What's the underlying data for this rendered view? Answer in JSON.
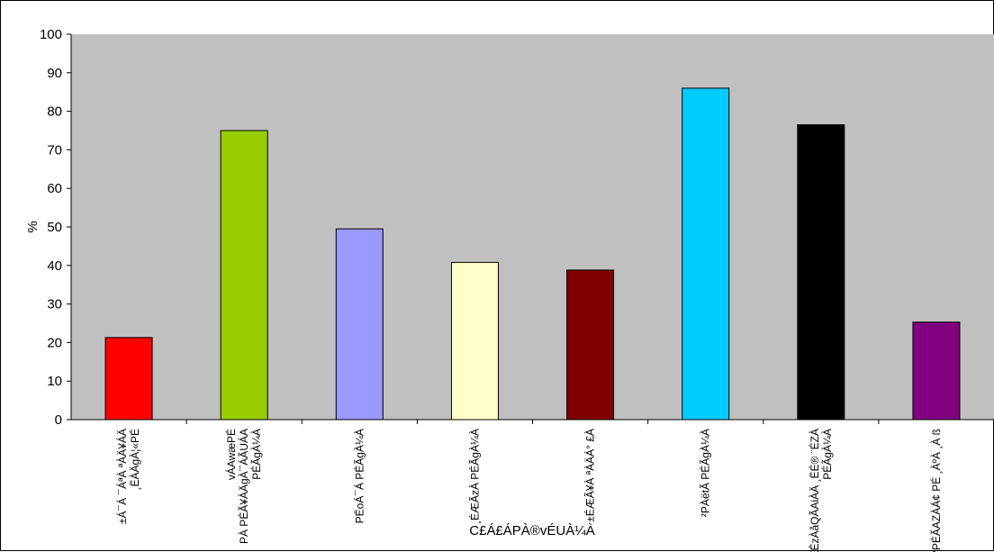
{
  "chart_data": {
    "type": "bar",
    "title": "",
    "ylabel": "%",
    "xlabel": "C£Á£ÁPÀ®vÉUÀ¼À",
    "ylim": [
      0,
      100
    ],
    "yticks": [
      0,
      10,
      20,
      30,
      40,
      50,
      60,
      70,
      80,
      90,
      100
    ],
    "grid": false,
    "legend": "none",
    "background": "#c0c0c0",
    "categories": [
      [
        "±Á¯Á ¯ÁªÀ ªÀÄ¥ÁÄ",
        "¸ËÀÄgÀ¦«PÉ"
      ],
      [
        "vÁAwæPÉ",
        "PÀ PÉÃ¥ÀÄgÀ¯ÁÃUÁA",
        "PÉÃgÀ¼À"
      ],
      [
        "PÉoÁ¯Á PÉÃgÀ¼À"
      ],
      [
        "¸ÉÆÃzÀ PÉÃgÀ¼À"
      ],
      [
        "±ÉÆÃ¥À ªÀÄÁ° £À"
      ],
      [
        "²PÀëtÃ PÉÃgÀ¼À"
      ],
      [
        "ªÉÊzÀåQÃAiÀÄ ¸ËÉ® ¨ÉZÀ",
        "PÉÃgÀ¼À"
      ],
      [
        "°PÉÃAZÀÁ¢ PÉ ¸ÀºÀ ¸À ß"
      ]
    ],
    "values": [
      21.3,
      75,
      49.5,
      40.8,
      38.8,
      86,
      76.5,
      25.3
    ],
    "colors": [
      "#ff0000",
      "#99cc00",
      "#9999ff",
      "#ffffcc",
      "#800000",
      "#00ccff",
      "#000000",
      "#800080"
    ]
  }
}
